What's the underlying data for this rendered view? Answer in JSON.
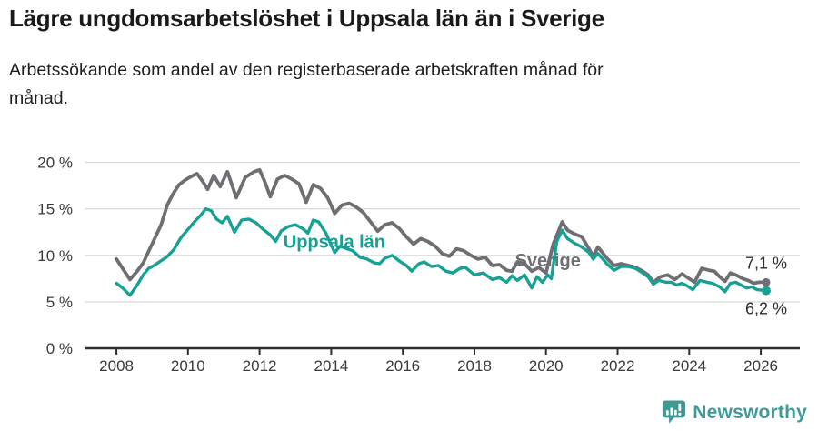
{
  "header": {
    "title": "Lägre ungdomsarbetslöshet i Uppsala län än i Sverige",
    "subtitle": "Arbetssökande som andel av den registerbaserade arbetskraften månad för\nmånad."
  },
  "footer": {
    "brand": "Newsworthy",
    "brand_color": "#3f9a9b"
  },
  "chart_data": {
    "type": "line",
    "title": "Lägre ungdomsarbetslöshet i Uppsala län än i Sverige",
    "xlabel": "",
    "ylabel": "",
    "xlim": [
      2007.11,
      2027.09
    ],
    "ylim": [
      0,
      20
    ],
    "grid": "horizontal",
    "legend_position": "inline-labels",
    "x_ticks": [
      2008,
      2010,
      2012,
      2014,
      2016,
      2018,
      2020,
      2022,
      2024,
      2026
    ],
    "y_ticks": [
      0,
      5,
      10,
      15,
      20
    ],
    "y_tick_labels": [
      "0 %",
      "5 %",
      "10 %",
      "15 %",
      "20 %"
    ],
    "series": [
      {
        "id": "sverige",
        "name": "Sverige",
        "color": "#6e6e73",
        "width": 3.8,
        "dot_r": 4.5,
        "end_label": "7,1 %",
        "end_label_dy": -15,
        "label_pos": [
          2020.05,
          8.8
        ],
        "points": [
          [
            2008.0,
            9.6
          ],
          [
            2008.17,
            8.6
          ],
          [
            2008.38,
            7.4
          ],
          [
            2008.58,
            8.3
          ],
          [
            2008.75,
            9.2
          ],
          [
            2008.92,
            10.6
          ],
          [
            2009.08,
            11.9
          ],
          [
            2009.25,
            13.3
          ],
          [
            2009.42,
            15.4
          ],
          [
            2009.58,
            16.6
          ],
          [
            2009.75,
            17.6
          ],
          [
            2009.92,
            18.1
          ],
          [
            2010.1,
            18.5
          ],
          [
            2010.25,
            18.8
          ],
          [
            2010.42,
            17.9
          ],
          [
            2010.55,
            17.1
          ],
          [
            2010.72,
            18.6
          ],
          [
            2010.9,
            17.4
          ],
          [
            2011.1,
            19.0
          ],
          [
            2011.35,
            16.2
          ],
          [
            2011.6,
            18.4
          ],
          [
            2011.85,
            19.0
          ],
          [
            2012.0,
            19.2
          ],
          [
            2012.15,
            17.9
          ],
          [
            2012.3,
            16.3
          ],
          [
            2012.5,
            18.2
          ],
          [
            2012.7,
            18.6
          ],
          [
            2012.9,
            18.2
          ],
          [
            2013.1,
            17.7
          ],
          [
            2013.3,
            15.7
          ],
          [
            2013.5,
            17.6
          ],
          [
            2013.7,
            17.2
          ],
          [
            2013.9,
            16.2
          ],
          [
            2014.1,
            14.5
          ],
          [
            2014.3,
            15.4
          ],
          [
            2014.5,
            15.6
          ],
          [
            2014.7,
            15.2
          ],
          [
            2014.9,
            14.6
          ],
          [
            2015.1,
            13.6
          ],
          [
            2015.3,
            12.6
          ],
          [
            2015.5,
            13.3
          ],
          [
            2015.7,
            13.5
          ],
          [
            2015.9,
            12.9
          ],
          [
            2016.1,
            12.0
          ],
          [
            2016.3,
            11.2
          ],
          [
            2016.5,
            11.8
          ],
          [
            2016.7,
            11.5
          ],
          [
            2016.9,
            11.0
          ],
          [
            2017.1,
            10.2
          ],
          [
            2017.3,
            9.9
          ],
          [
            2017.5,
            10.7
          ],
          [
            2017.7,
            10.5
          ],
          [
            2017.9,
            10.0
          ],
          [
            2018.1,
            9.6
          ],
          [
            2018.3,
            9.8
          ],
          [
            2018.5,
            8.9
          ],
          [
            2018.7,
            9.0
          ],
          [
            2018.9,
            8.4
          ],
          [
            2019.05,
            8.3
          ],
          [
            2019.2,
            9.3
          ],
          [
            2019.4,
            9.1
          ],
          [
            2019.6,
            8.3
          ],
          [
            2019.8,
            8.7
          ],
          [
            2020.0,
            8.1
          ],
          [
            2020.2,
            11.2
          ],
          [
            2020.45,
            13.6
          ],
          [
            2020.6,
            12.7
          ],
          [
            2020.8,
            12.3
          ],
          [
            2021.0,
            12.0
          ],
          [
            2021.2,
            10.7
          ],
          [
            2021.32,
            9.9
          ],
          [
            2021.45,
            10.9
          ],
          [
            2021.7,
            9.7
          ],
          [
            2021.9,
            8.9
          ],
          [
            2022.1,
            9.1
          ],
          [
            2022.3,
            8.9
          ],
          [
            2022.5,
            8.7
          ],
          [
            2022.7,
            8.3
          ],
          [
            2022.85,
            7.9
          ],
          [
            2023.0,
            7.1
          ],
          [
            2023.2,
            7.7
          ],
          [
            2023.4,
            7.9
          ],
          [
            2023.6,
            7.4
          ],
          [
            2023.8,
            8.0
          ],
          [
            2024.0,
            7.5
          ],
          [
            2024.15,
            7.1
          ],
          [
            2024.35,
            8.6
          ],
          [
            2024.55,
            8.4
          ],
          [
            2024.7,
            8.3
          ],
          [
            2024.85,
            7.7
          ],
          [
            2025.0,
            7.2
          ],
          [
            2025.15,
            8.1
          ],
          [
            2025.3,
            7.9
          ],
          [
            2025.5,
            7.5
          ],
          [
            2025.65,
            7.3
          ],
          [
            2025.8,
            7.0
          ],
          [
            2025.95,
            7.1
          ],
          [
            2026.15,
            7.1
          ]
        ]
      },
      {
        "id": "uppsala-lan",
        "name": "Uppsala län",
        "color": "#16a194",
        "width": 3.4,
        "dot_r": 5,
        "end_label": "6,2 %",
        "end_label_dy": 26,
        "label_pos": [
          2014.09,
          10.8
        ],
        "points": [
          [
            2008.0,
            7.0
          ],
          [
            2008.17,
            6.5
          ],
          [
            2008.38,
            5.7
          ],
          [
            2008.58,
            6.8
          ],
          [
            2008.75,
            7.9
          ],
          [
            2008.9,
            8.6
          ],
          [
            2009.05,
            8.9
          ],
          [
            2009.2,
            9.3
          ],
          [
            2009.4,
            9.8
          ],
          [
            2009.6,
            10.6
          ],
          [
            2009.8,
            11.9
          ],
          [
            2010.0,
            12.8
          ],
          [
            2010.2,
            13.7
          ],
          [
            2010.35,
            14.3
          ],
          [
            2010.5,
            15.0
          ],
          [
            2010.65,
            14.8
          ],
          [
            2010.8,
            13.9
          ],
          [
            2010.95,
            13.5
          ],
          [
            2011.1,
            14.2
          ],
          [
            2011.3,
            12.5
          ],
          [
            2011.5,
            13.8
          ],
          [
            2011.7,
            13.9
          ],
          [
            2011.9,
            13.5
          ],
          [
            2012.1,
            12.8
          ],
          [
            2012.3,
            12.2
          ],
          [
            2012.45,
            11.5
          ],
          [
            2012.6,
            12.6
          ],
          [
            2012.8,
            13.1
          ],
          [
            2013.0,
            13.3
          ],
          [
            2013.2,
            12.9
          ],
          [
            2013.35,
            12.4
          ],
          [
            2013.5,
            13.8
          ],
          [
            2013.65,
            13.6
          ],
          [
            2013.85,
            12.4
          ],
          [
            2014.1,
            10.3
          ],
          [
            2014.25,
            11.0
          ],
          [
            2014.45,
            10.7
          ],
          [
            2014.6,
            10.5
          ],
          [
            2014.8,
            9.8
          ],
          [
            2015.0,
            9.6
          ],
          [
            2015.2,
            9.2
          ],
          [
            2015.35,
            9.1
          ],
          [
            2015.5,
            9.7
          ],
          [
            2015.7,
            10.0
          ],
          [
            2015.9,
            9.4
          ],
          [
            2016.1,
            8.9
          ],
          [
            2016.25,
            8.3
          ],
          [
            2016.45,
            9.1
          ],
          [
            2016.6,
            9.3
          ],
          [
            2016.8,
            8.8
          ],
          [
            2017.0,
            8.9
          ],
          [
            2017.2,
            8.3
          ],
          [
            2017.4,
            8.1
          ],
          [
            2017.6,
            8.6
          ],
          [
            2017.75,
            8.7
          ],
          [
            2018.0,
            7.9
          ],
          [
            2018.25,
            8.1
          ],
          [
            2018.5,
            7.4
          ],
          [
            2018.7,
            7.6
          ],
          [
            2018.9,
            7.1
          ],
          [
            2019.05,
            7.8
          ],
          [
            2019.2,
            7.3
          ],
          [
            2019.4,
            7.9
          ],
          [
            2019.6,
            6.5
          ],
          [
            2019.75,
            7.7
          ],
          [
            2019.9,
            7.1
          ],
          [
            2020.05,
            7.9
          ],
          [
            2020.15,
            7.5
          ],
          [
            2020.3,
            11.5
          ],
          [
            2020.45,
            12.7
          ],
          [
            2020.6,
            11.8
          ],
          [
            2020.8,
            11.3
          ],
          [
            2021.0,
            10.9
          ],
          [
            2021.2,
            10.3
          ],
          [
            2021.32,
            9.6
          ],
          [
            2021.45,
            10.2
          ],
          [
            2021.7,
            9.1
          ],
          [
            2021.9,
            8.4
          ],
          [
            2022.1,
            8.8
          ],
          [
            2022.3,
            8.8
          ],
          [
            2022.5,
            8.6
          ],
          [
            2022.7,
            8.1
          ],
          [
            2022.85,
            7.7
          ],
          [
            2023.0,
            6.9
          ],
          [
            2023.15,
            7.3
          ],
          [
            2023.35,
            7.1
          ],
          [
            2023.5,
            7.1
          ],
          [
            2023.65,
            6.8
          ],
          [
            2023.8,
            7.0
          ],
          [
            2023.95,
            6.7
          ],
          [
            2024.1,
            6.3
          ],
          [
            2024.3,
            7.3
          ],
          [
            2024.5,
            7.1
          ],
          [
            2024.65,
            7.0
          ],
          [
            2024.85,
            6.6
          ],
          [
            2025.0,
            6.1
          ],
          [
            2025.15,
            7.0
          ],
          [
            2025.3,
            7.1
          ],
          [
            2025.45,
            6.8
          ],
          [
            2025.6,
            6.5
          ],
          [
            2025.75,
            6.6
          ],
          [
            2025.9,
            6.3
          ],
          [
            2026.15,
            6.2
          ]
        ]
      }
    ]
  }
}
